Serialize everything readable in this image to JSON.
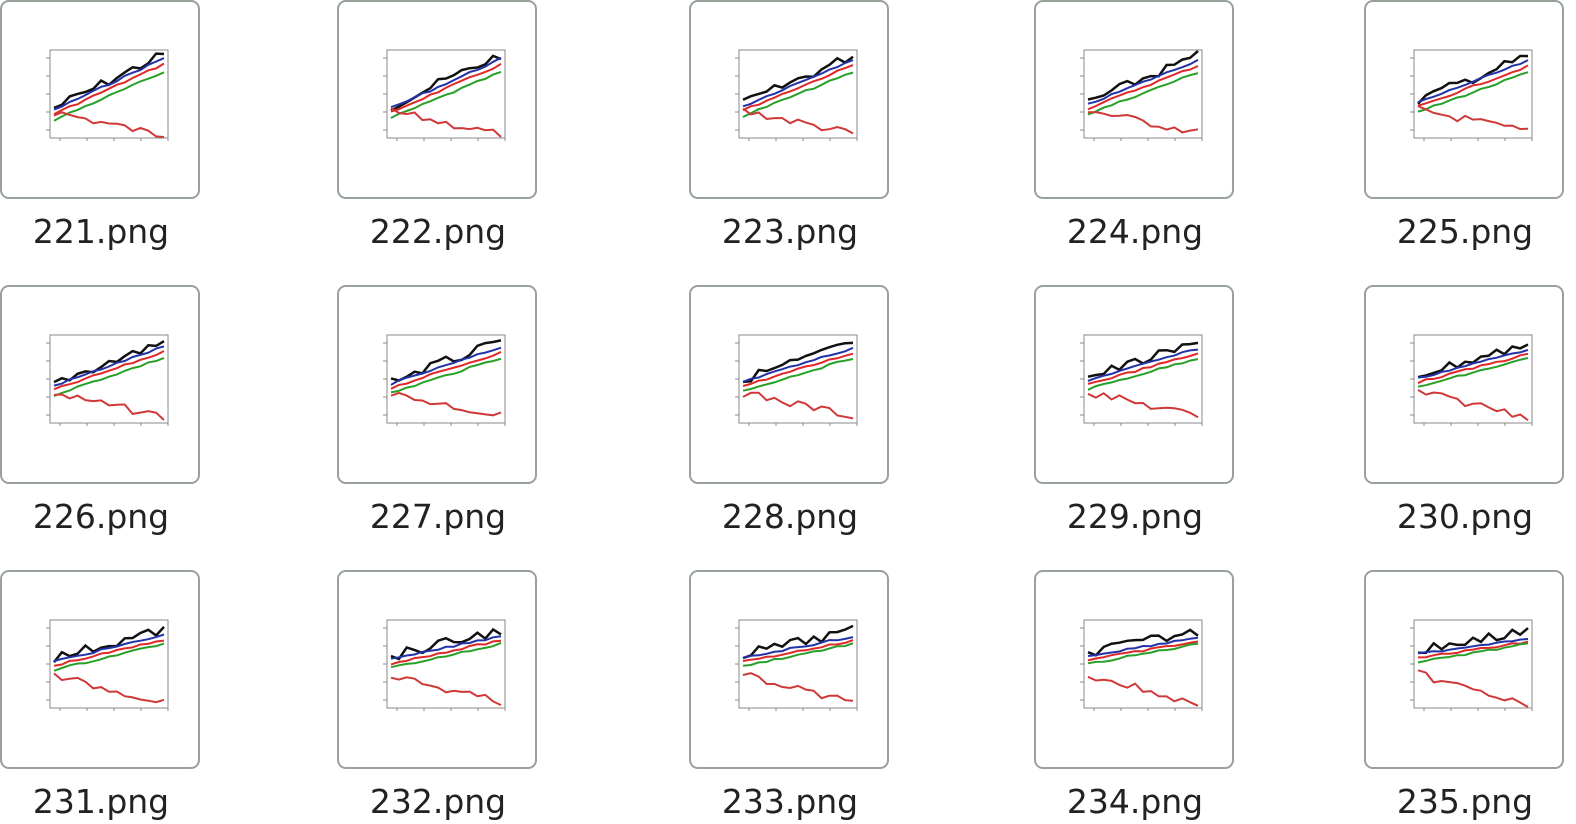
{
  "files": [
    "221.png",
    "222.png",
    "223.png",
    "224.png",
    "225.png",
    "226.png",
    "227.png",
    "228.png",
    "229.png",
    "230.png",
    "231.png",
    "232.png",
    "233.png",
    "234.png",
    "235.png"
  ]
}
